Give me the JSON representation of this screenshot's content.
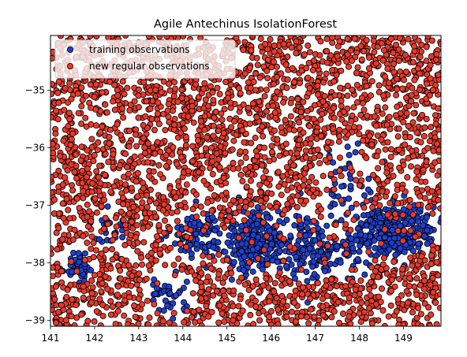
{
  "chart_data": {
    "type": "scatter",
    "title": "Agile Antechinus IsolationForest",
    "xlabel": "",
    "ylabel": "",
    "xlim": [
      141.0,
      149.85
    ],
    "ylim": [
      -39.1,
      -34.05
    ],
    "xticks": [
      141,
      142,
      143,
      144,
      145,
      146,
      147,
      148,
      149
    ],
    "yticks": [
      -35,
      -36,
      -37,
      -38,
      -39
    ],
    "grid": false,
    "legend_position": "top-left",
    "series": [
      {
        "name": "training observations",
        "color": "#1f3fcc",
        "edgecolor": "#000000",
        "clusters": [
          {
            "cx": 141.6,
            "cy": -38.05,
            "sx": 0.18,
            "sy": 0.15,
            "n": 40
          },
          {
            "cx": 142.3,
            "cy": -37.4,
            "sx": 0.18,
            "sy": 0.15,
            "n": 25
          },
          {
            "cx": 143.7,
            "cy": -38.55,
            "sx": 0.3,
            "sy": 0.2,
            "n": 40
          },
          {
            "cx": 144.3,
            "cy": -37.5,
            "sx": 0.28,
            "sy": 0.22,
            "n": 90
          },
          {
            "cx": 145.7,
            "cy": -37.65,
            "sx": 0.4,
            "sy": 0.28,
            "n": 260
          },
          {
            "cx": 146.9,
            "cy": -37.7,
            "sx": 0.35,
            "sy": 0.3,
            "n": 120
          },
          {
            "cx": 147.7,
            "cy": -36.6,
            "sx": 0.3,
            "sy": 0.35,
            "n": 45
          },
          {
            "cx": 147.6,
            "cy": -37.9,
            "sx": 0.3,
            "sy": 0.2,
            "n": 40
          },
          {
            "cx": 148.85,
            "cy": -37.45,
            "sx": 0.45,
            "sy": 0.22,
            "n": 320
          }
        ]
      },
      {
        "name": "new regular observations",
        "color": "#e8392b",
        "edgecolor": "#000000",
        "count": 3200,
        "distribution": "uniform over axes excluding training clusters"
      }
    ]
  }
}
